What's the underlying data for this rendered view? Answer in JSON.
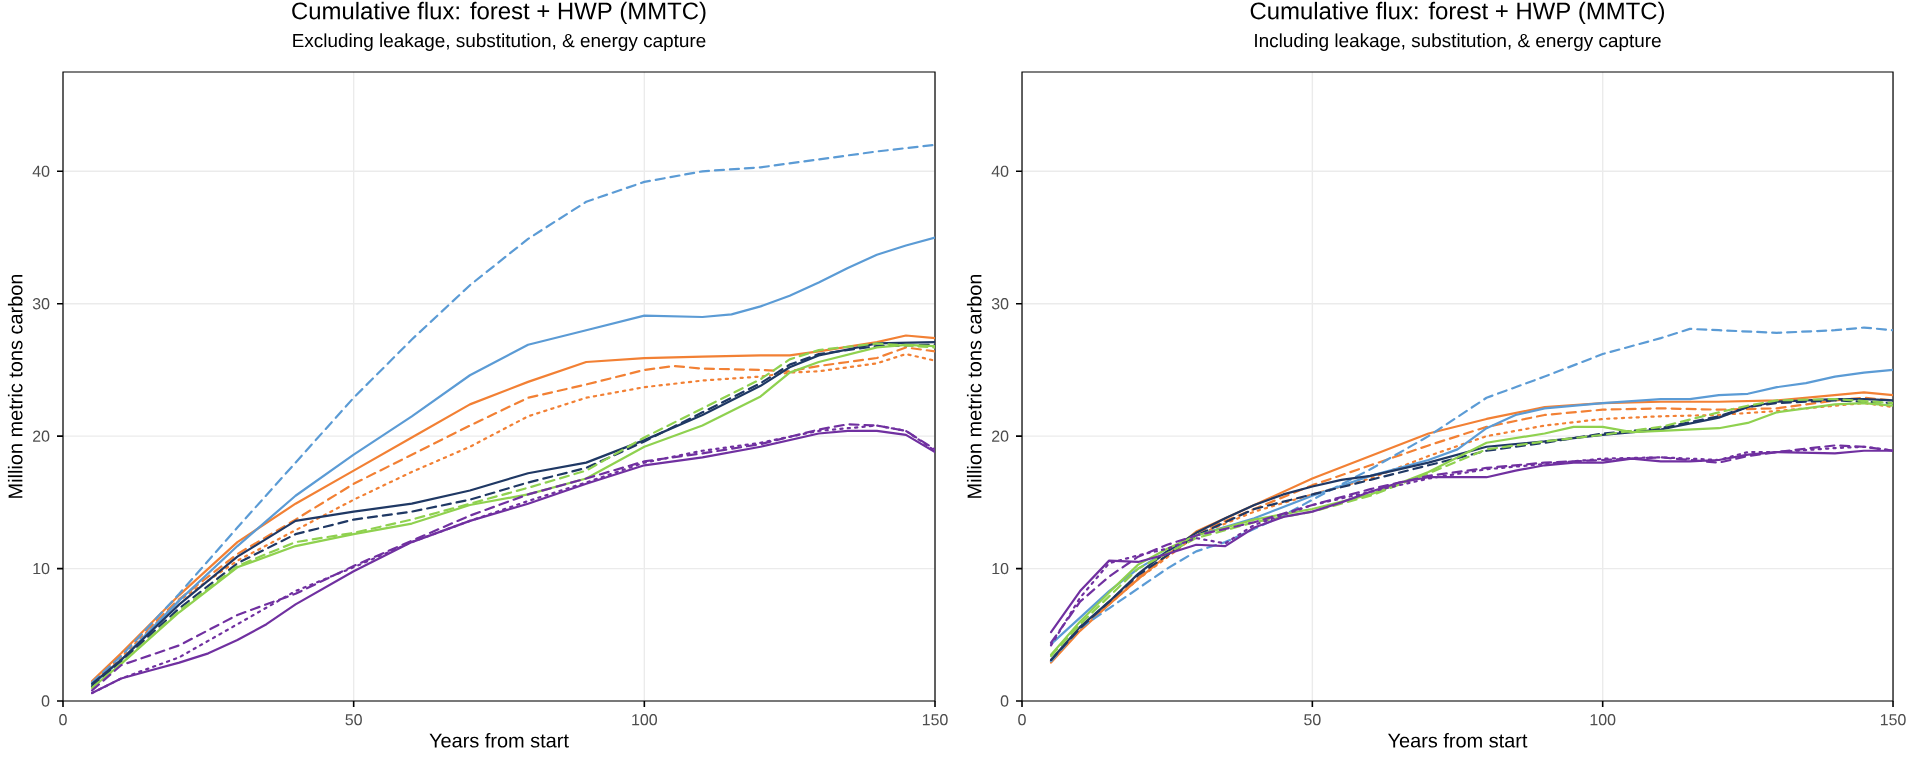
{
  "chart_data": [
    {
      "type": "line",
      "title": "Cumulative flux: forest + HWP (MMTC)",
      "subtitle": "Excluding leakage, substitution, & energy capture",
      "xlabel": "Years from start",
      "ylabel": "Million metric tons carbon",
      "xlim": [
        0,
        150
      ],
      "ylim": [
        0,
        47.5
      ],
      "xticks": [
        0,
        50,
        100,
        150
      ],
      "yticks": [
        0,
        10,
        20,
        30,
        40
      ],
      "grid": true,
      "series": [
        {
          "color": "#f28034",
          "line_style": "solid",
          "x": [
            5,
            10,
            20,
            30,
            40,
            50,
            60,
            70,
            80,
            90,
            100,
            110,
            120,
            125,
            130,
            140,
            145,
            150
          ],
          "values": [
            1.5,
            3.6,
            8,
            12,
            14.9,
            17.4,
            19.9,
            22.4,
            24.1,
            25.6,
            25.9,
            26,
            26.1,
            26.1,
            26.4,
            27.1,
            27.6,
            27.4
          ]
        },
        {
          "color": "#f28034",
          "line_style": "dashed",
          "x": [
            5,
            10,
            20,
            30,
            40,
            50,
            60,
            70,
            80,
            90,
            100,
            105,
            110,
            120,
            125,
            130,
            140,
            145,
            150
          ],
          "values": [
            1.4,
            3.5,
            7.7,
            11.1,
            13.7,
            16.4,
            18.6,
            20.8,
            22.9,
            23.9,
            25,
            25.3,
            25.1,
            25,
            24.9,
            25.3,
            25.9,
            26.7,
            26.4
          ]
        },
        {
          "color": "#f28034",
          "line_style": "dotted",
          "x": [
            5,
            10,
            20,
            30,
            40,
            50,
            60,
            70,
            80,
            90,
            100,
            110,
            120,
            125,
            130,
            140,
            145,
            150
          ],
          "values": [
            1.3,
            3.3,
            7.6,
            10.6,
            12.9,
            15.2,
            17.3,
            19.2,
            21.5,
            22.9,
            23.7,
            24.2,
            24.5,
            24.8,
            24.9,
            25.5,
            26.2,
            25.7
          ]
        },
        {
          "color": "#5b9bd5",
          "line_style": "solid",
          "x": [
            5,
            10,
            20,
            30,
            40,
            50,
            60,
            70,
            80,
            90,
            100,
            110,
            115,
            120,
            125,
            130,
            135,
            140,
            145,
            150
          ],
          "values": [
            1.2,
            3.1,
            7.6,
            11.7,
            15.5,
            18.6,
            21.5,
            24.6,
            26.9,
            28,
            29.1,
            29,
            29.2,
            29.8,
            30.6,
            31.6,
            32.7,
            33.7,
            34.4,
            35
          ]
        },
        {
          "color": "#5b9bd5",
          "line_style": "dashed",
          "x": [
            5,
            10,
            20,
            30,
            40,
            50,
            60,
            70,
            80,
            90,
            100,
            110,
            120,
            130,
            140,
            150
          ],
          "values": [
            1.4,
            3.4,
            8.1,
            13.1,
            18,
            22.9,
            27.3,
            31.4,
            34.9,
            37.7,
            39.2,
            40,
            40.3,
            40.9,
            41.5,
            42
          ]
        },
        {
          "color": "#1f3864",
          "line_style": "solid",
          "x": [
            5,
            10,
            20,
            30,
            40,
            50,
            60,
            70,
            80,
            90,
            100,
            110,
            120,
            125,
            130,
            140,
            150
          ],
          "values": [
            1.3,
            3.1,
            7.3,
            10.9,
            13.6,
            14.3,
            14.9,
            15.9,
            17.2,
            18,
            19.7,
            21.6,
            23.8,
            25.2,
            26.1,
            27,
            27.1
          ]
        },
        {
          "color": "#1f3864",
          "line_style": "dashed",
          "x": [
            5,
            10,
            20,
            30,
            40,
            50,
            60,
            70,
            80,
            90,
            100,
            110,
            120,
            125,
            130,
            140,
            150
          ],
          "values": [
            1.1,
            3,
            7,
            10.4,
            12.6,
            13.7,
            14.3,
            15.2,
            16.5,
            17.6,
            19.6,
            21.8,
            24,
            25.4,
            26.2,
            26.8,
            26.9
          ]
        },
        {
          "color": "#8fd14f",
          "line_style": "solid",
          "x": [
            5,
            10,
            20,
            30,
            40,
            50,
            60,
            70,
            80,
            90,
            100,
            110,
            120,
            125,
            130,
            140,
            145,
            150
          ],
          "values": [
            1,
            2.8,
            6.7,
            10.1,
            11.7,
            12.6,
            13.4,
            14.8,
            15.6,
            16.8,
            19.2,
            20.8,
            23,
            24.8,
            25.6,
            26.7,
            26.9,
            26.8
          ]
        },
        {
          "color": "#8fd14f",
          "line_style": "dashed",
          "x": [
            5,
            10,
            20,
            30,
            40,
            50,
            60,
            70,
            80,
            90,
            100,
            110,
            120,
            125,
            130,
            140,
            150
          ],
          "values": [
            1,
            2.8,
            6.8,
            10.2,
            12,
            12.7,
            13.7,
            14.9,
            16.1,
            17.4,
            19.9,
            22.1,
            24.3,
            25.8,
            26.5,
            27,
            26.7
          ]
        },
        {
          "color": "#7030a0",
          "line_style": "solid",
          "x": [
            5,
            10,
            15,
            20,
            25,
            30,
            35,
            40,
            50,
            60,
            70,
            80,
            90,
            100,
            110,
            120,
            130,
            135,
            140,
            145,
            150
          ],
          "values": [
            0.6,
            1.7,
            2.3,
            2.9,
            3.6,
            4.6,
            5.8,
            7.3,
            9.8,
            12,
            13.6,
            14.9,
            16.4,
            17.8,
            18.4,
            19.2,
            20.2,
            20.4,
            20.4,
            20.1,
            18.8
          ]
        },
        {
          "color": "#7030a0",
          "line_style": "dashed",
          "x": [
            5,
            10,
            20,
            30,
            40,
            50,
            60,
            70,
            80,
            90,
            100,
            110,
            120,
            130,
            135,
            140,
            145,
            150
          ],
          "values": [
            0.8,
            2.7,
            4.2,
            6.5,
            8.1,
            10.2,
            12.1,
            14,
            15.6,
            16.8,
            18.1,
            18.7,
            19.4,
            20.5,
            20.9,
            20.8,
            20.4,
            19
          ]
        },
        {
          "color": "#7030a0",
          "line_style": "dotted",
          "x": [
            5,
            10,
            20,
            30,
            40,
            50,
            60,
            70,
            80,
            90,
            100,
            110,
            120,
            130,
            140,
            145,
            150
          ],
          "values": [
            0.6,
            1.7,
            3.3,
            5.8,
            8.3,
            10.1,
            12,
            13.6,
            15.1,
            16.5,
            18,
            18.9,
            19.5,
            20.4,
            20.8,
            20.4,
            18.9
          ]
        }
      ]
    },
    {
      "type": "line",
      "title": "Cumulative flux: forest + HWP (MMTC)",
      "subtitle": "Including leakage, substitution, & energy capture",
      "xlabel": "Years from start",
      "ylabel": "Million metric tons carbon",
      "xlim": [
        0,
        150
      ],
      "ylim": [
        0,
        47.5
      ],
      "xticks": [
        0,
        50,
        100,
        150
      ],
      "yticks": [
        0,
        10,
        20,
        30,
        40
      ],
      "grid": true,
      "series": [
        {
          "color": "#f28034",
          "line_style": "solid",
          "x": [
            5,
            10,
            15,
            20,
            25,
            30,
            40,
            50,
            60,
            70,
            80,
            90,
            100,
            110,
            120,
            130,
            140,
            145,
            150
          ],
          "values": [
            2.9,
            5.3,
            7.3,
            9.2,
            11,
            12.8,
            14.8,
            16.8,
            18.5,
            20.2,
            21.3,
            22.2,
            22.5,
            22.6,
            22.6,
            22.7,
            23.1,
            23.3,
            23.1
          ]
        },
        {
          "color": "#f28034",
          "line_style": "dashed",
          "x": [
            5,
            10,
            20,
            30,
            40,
            50,
            60,
            70,
            80,
            90,
            100,
            110,
            120,
            130,
            140,
            145,
            150
          ],
          "values": [
            3,
            5.4,
            9.3,
            12.7,
            14.5,
            16.3,
            17.8,
            19.3,
            20.7,
            21.6,
            22,
            22.1,
            22,
            22.1,
            22.7,
            22.9,
            22.7
          ]
        },
        {
          "color": "#f28034",
          "line_style": "dotted",
          "x": [
            5,
            10,
            20,
            30,
            40,
            50,
            60,
            70,
            80,
            90,
            100,
            110,
            120,
            130,
            140,
            145,
            150
          ],
          "values": [
            3,
            5.4,
            9.2,
            12.5,
            14.3,
            15.6,
            16.8,
            18.5,
            20,
            20.8,
            21.3,
            21.5,
            21.6,
            21.9,
            22.3,
            22.5,
            22.2
          ]
        },
        {
          "color": "#5b9bd5",
          "line_style": "solid",
          "x": [
            5,
            10,
            15,
            20,
            25,
            30,
            40,
            50,
            60,
            70,
            75,
            80,
            85,
            90,
            100,
            110,
            115,
            120,
            125,
            130,
            135,
            140,
            145,
            150
          ],
          "values": [
            4.3,
            6.3,
            8.3,
            10,
            11.3,
            12.5,
            13.8,
            15.5,
            17,
            18.2,
            19,
            20.6,
            21.6,
            22.1,
            22.5,
            22.8,
            22.8,
            23.1,
            23.2,
            23.7,
            24,
            24.5,
            24.8,
            25
          ]
        },
        {
          "color": "#5b9bd5",
          "line_style": "dashed",
          "x": [
            5,
            10,
            15,
            20,
            25,
            30,
            35,
            40,
            45,
            50,
            60,
            70,
            80,
            90,
            100,
            110,
            115,
            120,
            130,
            140,
            145,
            150
          ],
          "values": [
            3,
            5.5,
            7,
            8.5,
            10,
            11.3,
            12,
            13,
            14,
            15.2,
            17.5,
            20,
            22.9,
            24.5,
            26.2,
            27.4,
            28.1,
            28,
            27.8,
            28,
            28.2,
            28
          ]
        },
        {
          "color": "#1f3864",
          "line_style": "solid",
          "x": [
            5,
            10,
            15,
            20,
            25,
            30,
            35,
            40,
            45,
            50,
            55,
            60,
            70,
            80,
            90,
            100,
            110,
            120,
            125,
            130,
            140,
            145,
            150
          ],
          "values": [
            3.1,
            5.6,
            7.5,
            9.6,
            11.3,
            12.7,
            13.8,
            14.8,
            15.6,
            16.2,
            16.7,
            17,
            18,
            19.2,
            19.6,
            20.1,
            20.5,
            21.4,
            22.2,
            22.6,
            22.8,
            22.8,
            22.7
          ]
        },
        {
          "color": "#1f3864",
          "line_style": "dashed",
          "x": [
            5,
            10,
            20,
            30,
            40,
            50,
            60,
            70,
            80,
            90,
            100,
            110,
            120,
            125,
            130,
            140,
            150
          ],
          "values": [
            3.1,
            5.5,
            9.5,
            12.5,
            14.5,
            15.6,
            16.7,
            17.8,
            18.9,
            19.5,
            20.2,
            20.6,
            21.5,
            22.2,
            22.5,
            22.7,
            22.5
          ]
        },
        {
          "color": "#8fd14f",
          "line_style": "solid",
          "x": [
            5,
            10,
            15,
            20,
            25,
            30,
            40,
            50,
            60,
            70,
            80,
            90,
            95,
            100,
            105,
            110,
            120,
            125,
            130,
            140,
            145,
            150
          ],
          "values": [
            3.5,
            6,
            8.2,
            10.3,
            11.5,
            12.5,
            13.7,
            14.5,
            15.6,
            17.3,
            19.5,
            20.2,
            20.7,
            20.7,
            20.3,
            20.4,
            20.6,
            21,
            21.8,
            22.4,
            22.5,
            22.3
          ]
        },
        {
          "color": "#8fd14f",
          "line_style": "dashed",
          "x": [
            5,
            10,
            20,
            30,
            40,
            50,
            60,
            70,
            80,
            90,
            100,
            110,
            120,
            125,
            130,
            140,
            150
          ],
          "values": [
            3.4,
            5.8,
            10,
            12.3,
            13.5,
            14.3,
            15.5,
            17.2,
            19,
            19.6,
            20.1,
            20.7,
            21.8,
            22.3,
            22.7,
            22.8,
            22.5
          ]
        },
        {
          "color": "#7030a0",
          "line_style": "solid",
          "x": [
            5,
            10,
            15,
            20,
            25,
            30,
            35,
            40,
            45,
            50,
            55,
            60,
            65,
            70,
            75,
            80,
            85,
            90,
            95,
            100,
            105,
            110,
            115,
            120,
            125,
            130,
            140,
            145,
            150
          ],
          "values": [
            5.2,
            8.3,
            10.6,
            10.5,
            11.1,
            11.8,
            11.7,
            13.1,
            13.9,
            14.3,
            15,
            15.8,
            16.5,
            16.9,
            16.9,
            16.9,
            17.4,
            17.8,
            18,
            18,
            18.3,
            18.1,
            18.1,
            18.2,
            18.6,
            18.8,
            18.7,
            18.9,
            18.9
          ]
        },
        {
          "color": "#7030a0",
          "line_style": "dashed",
          "x": [
            5,
            10,
            15,
            20,
            25,
            30,
            40,
            50,
            60,
            70,
            80,
            90,
            100,
            110,
            120,
            125,
            130,
            140,
            145,
            150
          ],
          "values": [
            4.4,
            7.5,
            9.4,
            10.9,
            11.8,
            12.5,
            13.5,
            14.8,
            16,
            17,
            17.6,
            18,
            18.2,
            18.4,
            18,
            18.5,
            18.8,
            19.3,
            19.2,
            18.9
          ]
        },
        {
          "color": "#7030a0",
          "line_style": "dotted",
          "x": [
            5,
            10,
            15,
            20,
            25,
            30,
            35,
            40,
            50,
            60,
            70,
            80,
            90,
            100,
            110,
            120,
            125,
            130,
            140,
            145,
            150
          ],
          "values": [
            4.2,
            7.8,
            10.4,
            11,
            11.5,
            12.3,
            11.9,
            13.3,
            14.8,
            15.8,
            16.8,
            17.5,
            17.9,
            18.3,
            18.4,
            18.2,
            18.8,
            18.8,
            19.1,
            19.2,
            18.9
          ]
        }
      ]
    }
  ]
}
